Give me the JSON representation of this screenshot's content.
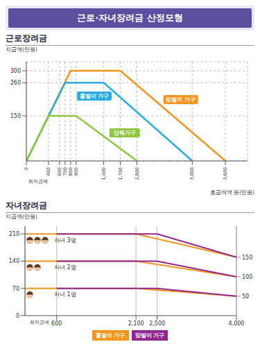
{
  "header": {
    "title": "근로·자녀장려금 산정모형"
  },
  "chart_data": [
    {
      "type": "line",
      "title": "근로장려금",
      "y_label": "지급액(만원)",
      "x_label": "총급여액 등(만원)",
      "annotation": "최저금액",
      "series": [
        {
          "name": "맞벌이 가구",
          "color": "#f7941d",
          "x": [
            0,
            800,
            1700,
            3600
          ],
          "values": [
            0,
            300,
            300,
            0
          ]
        },
        {
          "name": "홑벌이 가구",
          "color": "#29abe2",
          "x": [
            0,
            700,
            1400,
            3000
          ],
          "values": [
            0,
            260,
            260,
            0
          ]
        },
        {
          "name": "단독가구",
          "color": "#8dc63f",
          "x": [
            0,
            400,
            900,
            2000
          ],
          "values": [
            0,
            150,
            150,
            0
          ]
        }
      ],
      "xlim": [
        0,
        4000
      ],
      "xticks": [
        0,
        400,
        600,
        700,
        800,
        900,
        {
          "value": 1400,
          "label": "1,400"
        },
        {
          "value": 1700,
          "label": "1,700"
        },
        {
          "value": 2000,
          "label": "2,000"
        },
        {
          "value": 3000,
          "label": "3,000"
        },
        {
          "value": 3600,
          "label": "3,600"
        }
      ],
      "ylim": [
        0,
        330
      ],
      "yticks": [
        150,
        260,
        300
      ],
      "grid": true
    },
    {
      "type": "line",
      "title": "자녀장려금",
      "y_label": "지급액(만원)",
      "annotation": "최저금액",
      "groups": [
        "자녀 1명",
        "자녀 2명",
        "자녀 3명"
      ],
      "series": [
        {
          "name": "홑벌이 가구",
          "color": "#f7941d",
          "x": [
            0,
            2100,
            4000
          ],
          "values": [
            [
              70,
              70,
              50
            ],
            [
              140,
              140,
              100
            ],
            [
              210,
              210,
              150
            ]
          ]
        },
        {
          "name": "맞벌이 가구",
          "color": "#92278f",
          "x": [
            600,
            2500,
            4000
          ],
          "values": [
            [
              70,
              70,
              50
            ],
            [
              140,
              140,
              100
            ],
            [
              210,
              210,
              150
            ]
          ]
        }
      ],
      "xlim": [
        0,
        4000
      ],
      "xticks": [
        600,
        {
          "value": 2100,
          "label": "2,100"
        },
        {
          "value": 2500,
          "label": "2,500"
        },
        {
          "value": 4000,
          "label": "4,000"
        }
      ],
      "ylim": [
        0,
        230
      ],
      "yticks": [
        0,
        70,
        140,
        210
      ],
      "y2lim": [
        0,
        230
      ],
      "y2ticks": [
        50,
        100,
        150
      ],
      "grid": "x",
      "legend": "bottom"
    }
  ]
}
